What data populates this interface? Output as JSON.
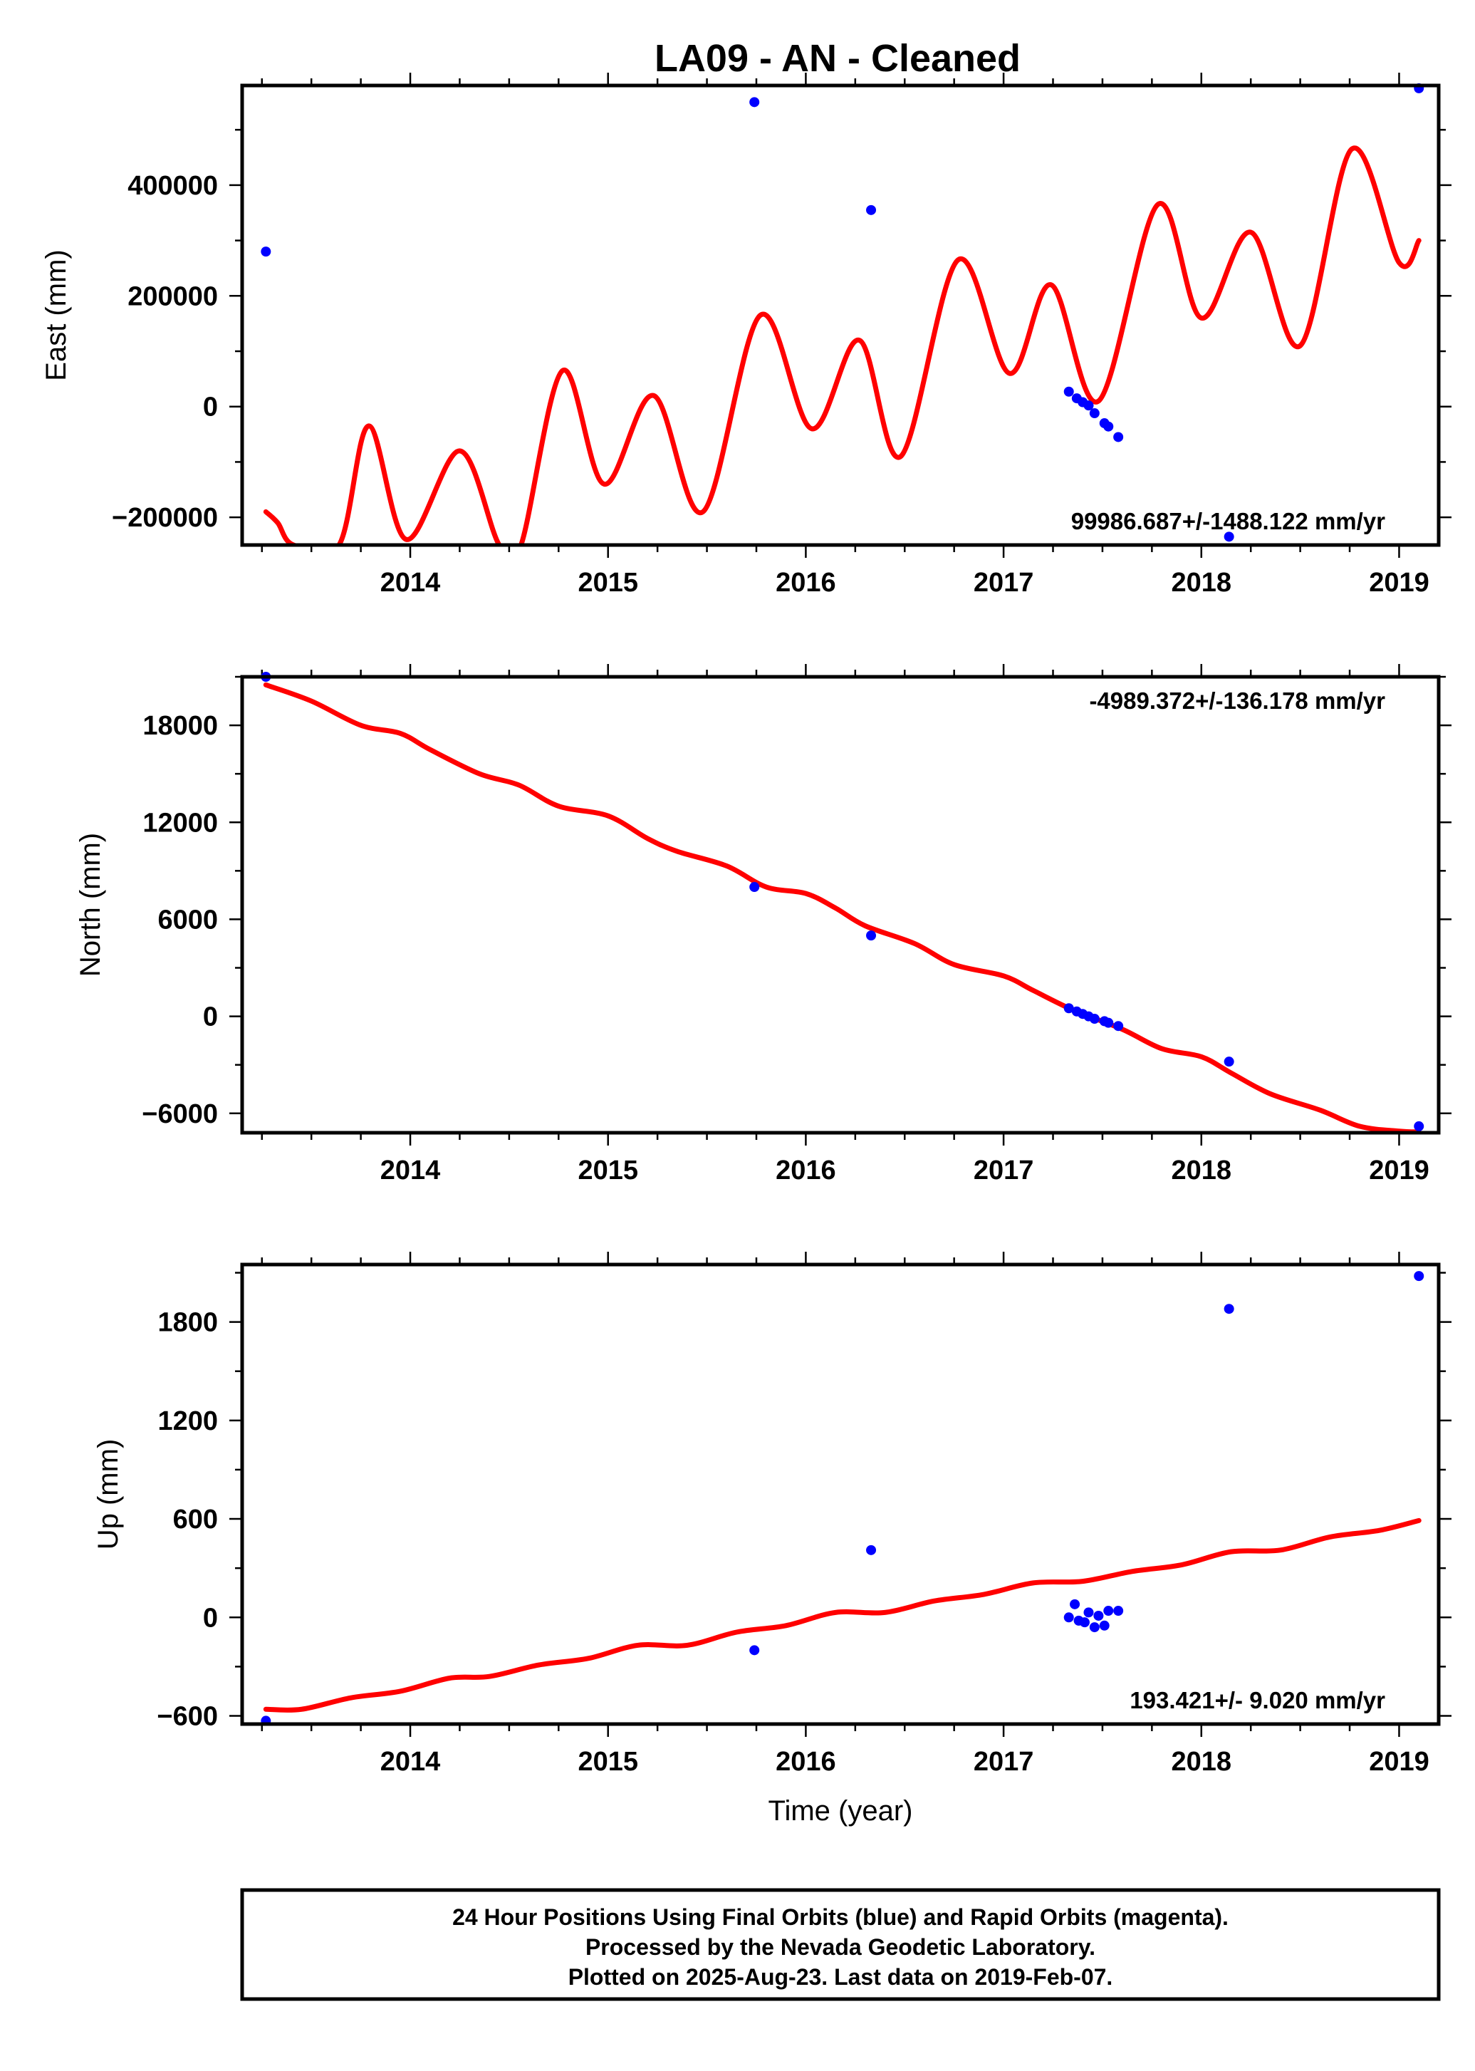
{
  "title": "LA09  - AN - Cleaned",
  "colors": {
    "final_orbits": "#0000ff",
    "model_fit": "#ff0000",
    "frame": "#000000"
  },
  "chart_data": [
    {
      "type": "scatter",
      "ylabel": "East (mm)",
      "xlabel": "",
      "xlim": [
        2013.15,
        2019.2
      ],
      "ylim": [
        -250000,
        580000
      ],
      "x_ticks": [
        "2014",
        "2015",
        "2016",
        "2017",
        "2018",
        "2019"
      ],
      "y_ticks": [
        "−200000",
        "0",
        "200000",
        "400000"
      ],
      "y_tick_values": [
        -200000,
        0,
        200000,
        400000
      ],
      "rate_label": "99986.687+/-1488.122 mm/yr",
      "series": [
        {
          "style": "points",
          "color": "#0000ff",
          "x": [
            2013.27,
            2015.74,
            2016.33,
            2017.33,
            2017.37,
            2017.4,
            2017.43,
            2017.46,
            2017.51,
            2017.53,
            2017.58,
            2018.14,
            2019.1
          ],
          "y": [
            280000,
            550000,
            355000,
            27000,
            15000,
            8000,
            2000,
            -12000,
            -30000,
            -36000,
            -55000,
            -235000,
            575000
          ]
        },
        {
          "style": "line",
          "color": "#ff0000",
          "x": [
            2013.27,
            2013.33,
            2013.41,
            2013.64,
            2013.79,
            2013.98,
            2014.25,
            2014.45,
            2014.56,
            2014.77,
            2014.98,
            2015.23,
            2015.48,
            2015.77,
            2016.03,
            2016.27,
            2016.48,
            2016.77,
            2017.03,
            2017.24,
            2017.48,
            2017.78,
            2018.0,
            2018.25,
            2018.5,
            2018.76,
            2019.0,
            2019.1
          ],
          "y": [
            -190000,
            -210000,
            -250000,
            -250000,
            -35000,
            -240000,
            -80000,
            -250000,
            -250000,
            65000,
            -140000,
            20000,
            -190000,
            165000,
            -40000,
            120000,
            -90000,
            265000,
            60000,
            220000,
            10000,
            365000,
            160000,
            315000,
            110000,
            465000,
            260000,
            300000
          ]
        }
      ]
    },
    {
      "type": "scatter",
      "ylabel": "North (mm)",
      "xlabel": "",
      "xlim": [
        2013.15,
        2019.2
      ],
      "ylim": [
        -7200,
        21000
      ],
      "x_ticks": [
        "2014",
        "2015",
        "2016",
        "2017",
        "2018",
        "2019"
      ],
      "y_ticks": [
        "−6000",
        "0",
        "6000",
        "12000",
        "18000"
      ],
      "y_tick_values": [
        -6000,
        0,
        6000,
        12000,
        18000
      ],
      "rate_label": "-4989.372+/-136.178 mm/yr",
      "series": [
        {
          "style": "points",
          "color": "#0000ff",
          "x": [
            2013.27,
            2015.74,
            2016.33,
            2017.33,
            2017.37,
            2017.4,
            2017.43,
            2017.46,
            2017.51,
            2017.53,
            2017.58,
            2018.14,
            2019.1
          ],
          "y": [
            21000,
            8000,
            5000,
            500,
            300,
            150,
            0,
            -150,
            -300,
            -400,
            -600,
            -2800,
            -6800
          ]
        },
        {
          "style": "line",
          "color": "#ff0000",
          "x": [
            2013.27,
            2013.5,
            2013.75,
            2013.95,
            2014.1,
            2014.35,
            2014.55,
            2014.75,
            2015.0,
            2015.2,
            2015.35,
            2015.6,
            2015.8,
            2016.0,
            2016.15,
            2016.3,
            2016.55,
            2016.75,
            2017.0,
            2017.15,
            2017.35,
            2017.6,
            2017.8,
            2018.0,
            2018.15,
            2018.35,
            2018.6,
            2018.8,
            2019.0,
            2019.1
          ],
          "y": [
            20500,
            19500,
            18000,
            17500,
            16500,
            15000,
            14300,
            13000,
            12400,
            11000,
            10200,
            9300,
            8000,
            7600,
            6700,
            5600,
            4500,
            3200,
            2500,
            1600,
            400,
            -800,
            -2000,
            -2500,
            -3500,
            -4800,
            -5800,
            -6800,
            -7100,
            -7150
          ]
        }
      ]
    },
    {
      "type": "scatter",
      "ylabel": "Up (mm)",
      "xlabel": "Time (year)",
      "xlim": [
        2013.15,
        2019.2
      ],
      "ylim": [
        -650,
        2150
      ],
      "x_ticks": [
        "2014",
        "2015",
        "2016",
        "2017",
        "2018",
        "2019"
      ],
      "y_ticks": [
        "−600",
        "0",
        "600",
        "1200",
        "1800"
      ],
      "y_tick_values": [
        -600,
        0,
        600,
        1200,
        1800
      ],
      "rate_label": "193.421+/- 9.020 mm/yr",
      "series": [
        {
          "style": "points",
          "color": "#0000ff",
          "x": [
            2013.27,
            2015.74,
            2016.33,
            2017.33,
            2017.36,
            2017.38,
            2017.41,
            2017.43,
            2017.46,
            2017.48,
            2017.51,
            2017.53,
            2017.58,
            2018.14,
            2019.1
          ],
          "y": [
            -630,
            -200,
            410,
            0,
            80,
            -20,
            -30,
            30,
            -60,
            10,
            -50,
            40,
            40,
            1880,
            2080
          ]
        },
        {
          "style": "line",
          "color": "#ff0000",
          "x": [
            2013.27,
            2013.45,
            2013.7,
            2013.95,
            2014.2,
            2014.4,
            2014.65,
            2014.9,
            2015.15,
            2015.4,
            2015.65,
            2015.9,
            2016.15,
            2016.4,
            2016.65,
            2016.9,
            2017.15,
            2017.4,
            2017.65,
            2017.9,
            2018.15,
            2018.4,
            2018.65,
            2018.9,
            2019.1
          ],
          "y": [
            -560,
            -560,
            -490,
            -450,
            -370,
            -360,
            -290,
            -250,
            -170,
            -170,
            -90,
            -50,
            30,
            30,
            100,
            140,
            210,
            220,
            280,
            320,
            400,
            410,
            490,
            530,
            590
          ]
        }
      ]
    }
  ],
  "footer": {
    "line1": "24 Hour Positions Using Final Orbits (blue) and Rapid Orbits (magenta).",
    "line2": "Processed by the Nevada Geodetic Laboratory.",
    "line3": "Plotted on 2025-Aug-23. Last data on 2019-Feb-07."
  }
}
